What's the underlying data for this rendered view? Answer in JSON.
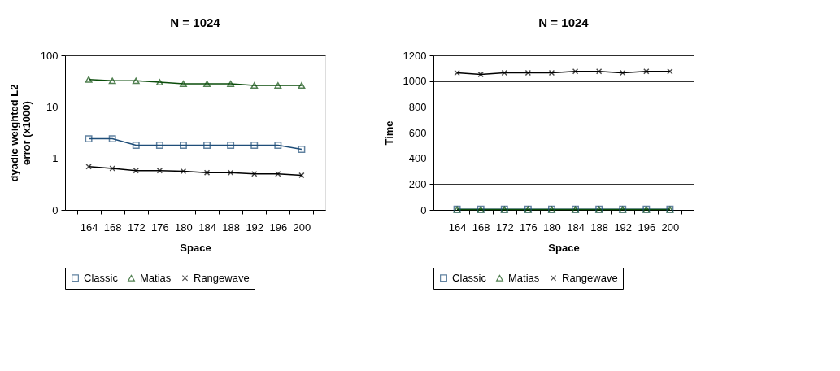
{
  "chart_data": [
    {
      "type": "line",
      "title": "N = 1024",
      "xlabel": "Space",
      "ylabel": "dyadic weighted L2 error (x1000)",
      "categories": [
        "164",
        "168",
        "172",
        "176",
        "180",
        "184",
        "188",
        "192",
        "196",
        "200"
      ],
      "log": "y",
      "ylim": [
        0.1,
        100
      ],
      "yticks": [
        {
          "value": 0.1,
          "label": "0"
        },
        1,
        10,
        100
      ],
      "grid": "y",
      "legend": "bottom",
      "series": [
        {
          "name": "Classic",
          "color": "#1f4e79",
          "marker": "square",
          "values": [
            2.4,
            2.4,
            1.8,
            1.8,
            1.8,
            1.8,
            1.8,
            1.8,
            1.8,
            1.5
          ]
        },
        {
          "name": "Matias",
          "color": "#0b4d0b",
          "marker": "triangle",
          "values": [
            34,
            32,
            32,
            30,
            28,
            28,
            28,
            26,
            26,
            26
          ]
        },
        {
          "name": "Rangewave",
          "color": "#000000",
          "marker": "cross",
          "values": [
            0.69,
            0.64,
            0.58,
            0.58,
            0.56,
            0.53,
            0.53,
            0.5,
            0.5,
            0.47
          ]
        }
      ]
    },
    {
      "type": "line",
      "title": "N = 1024",
      "xlabel": "Space",
      "ylabel": "Time",
      "categories": [
        "164",
        "168",
        "172",
        "176",
        "180",
        "184",
        "188",
        "192",
        "196",
        "200"
      ],
      "ylim": [
        0,
        1200
      ],
      "yticks": [
        0,
        200,
        400,
        600,
        800,
        1000,
        1200
      ],
      "grid": "y",
      "legend": "bottom",
      "series": [
        {
          "name": "Classic",
          "color": "#1f4e79",
          "marker": "square",
          "values": [
            5,
            5,
            5,
            5,
            5,
            5,
            5,
            5,
            5,
            5
          ]
        },
        {
          "name": "Matias",
          "color": "#0b4d0b",
          "marker": "triangle",
          "values": [
            3,
            3,
            3,
            3,
            3,
            3,
            3,
            3,
            3,
            3
          ]
        },
        {
          "name": "Rangewave",
          "color": "#000000",
          "marker": "cross",
          "values": [
            1064,
            1051,
            1064,
            1064,
            1064,
            1075,
            1075,
            1064,
            1075,
            1075
          ]
        }
      ]
    }
  ]
}
